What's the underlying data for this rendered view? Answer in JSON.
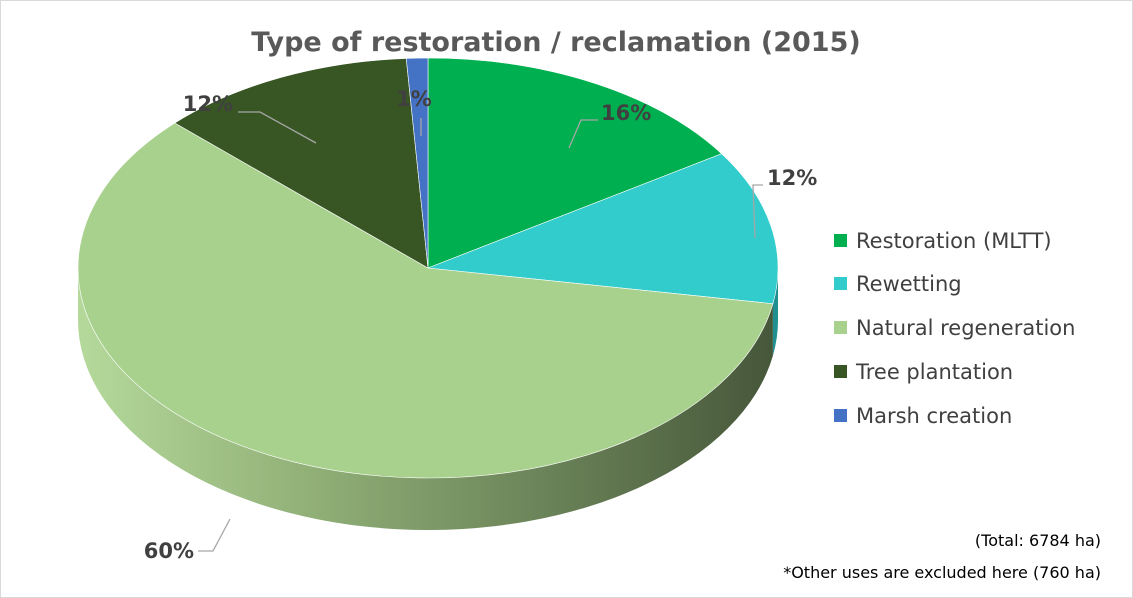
{
  "chart_data": {
    "type": "pie",
    "title": "Type of restoration / reclamation (2015)",
    "categories": [
      "Restoration (MLTT)",
      "Rewetting",
      "Natural regeneration",
      "Tree plantation",
      "Marsh creation"
    ],
    "values": [
      16,
      12,
      60,
      12,
      1
    ],
    "value_labels": [
      "16%",
      "12%",
      "60%",
      "12%",
      "1%"
    ],
    "colors": [
      "#00b050",
      "#33cccc",
      "#a9d18e",
      "#375623",
      "#4472c4"
    ],
    "side_colors": [
      "#007a38",
      "#1f8f8f",
      "#6f8f5a",
      "#26391a",
      "#2f528f"
    ],
    "style": "3d",
    "legend_position": "right",
    "notes": [
      "(Total: 6784 ha)",
      "*Other uses are excluded here (760 ha)"
    ]
  }
}
